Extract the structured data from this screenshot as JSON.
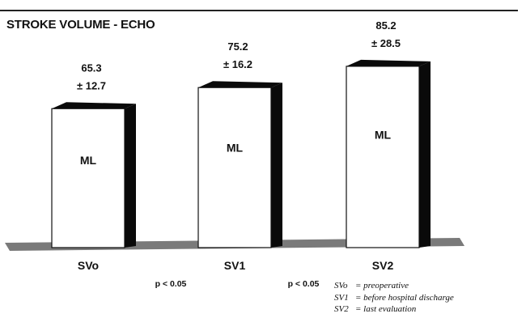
{
  "chart_data": {
    "type": "bar",
    "title": "STROKE VOLUME - ECHO",
    "categories": [
      "SVo",
      "SV1",
      "SV2"
    ],
    "values": [
      65.3,
      75.2,
      85.2
    ],
    "sd": [
      12.7,
      16.2,
      28.5
    ],
    "mean_labels": [
      "65.3",
      "75.2",
      "85.2"
    ],
    "sd_labels": [
      "± 12.7",
      "± 16.2",
      "± 28.5"
    ],
    "bar_text": "ML",
    "p_values": [
      {
        "label": "p < 0.05",
        "between": [
          "SVo",
          "SV1"
        ]
      },
      {
        "label": "p < 0.05",
        "between": [
          "SV1",
          "SV2"
        ]
      }
    ],
    "legend": [
      {
        "key": "SVo",
        "desc": "= preoperative"
      },
      {
        "key": "SV1",
        "desc": "= before hospital discharge"
      },
      {
        "key": "SV2",
        "desc": "= last evaluation"
      }
    ],
    "xlabel": "",
    "ylabel": "",
    "ylim": [
      0,
      100
    ],
    "grid": false,
    "style": "3d"
  },
  "colors": {
    "bar_face": "#ffffff",
    "bar_side": "#0a0a0a",
    "floor": "#7a7a7a",
    "outline": "#111111"
  }
}
